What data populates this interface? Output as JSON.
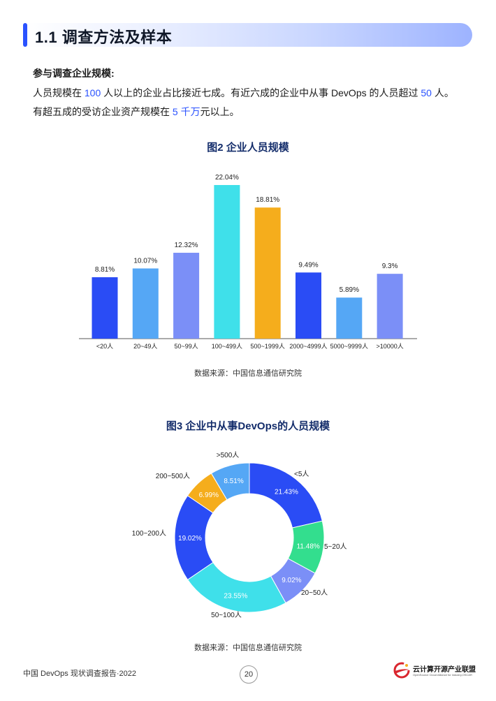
{
  "header": {
    "section_title": "1.1 调查方法及样本"
  },
  "intro": {
    "heading": "参与调查企业规模:",
    "line1_a": "人员规模在 ",
    "line1_b": "100",
    "line1_c": " 人以上的企业占比接近七成。有近六成的企业中从事 DevOps 的人员超过 ",
    "line1_d": "50",
    "line1_e": " 人。",
    "line2_a": "有超五成的受访企业资产规模在 ",
    "line2_b": "5 千万",
    "line2_c": "元以上。"
  },
  "figures": {
    "fig2_title": "图2 企业人员规模",
    "fig2_source": "数据来源：中国信息通信研究院",
    "fig3_title": "图3 企业中从事DevOps的人员规模",
    "fig3_source": "数据来源：中国信息通信研究院"
  },
  "chart_data": [
    {
      "type": "bar",
      "title": "图2 企业人员规模",
      "categories": [
        "<20人",
        "20~49人",
        "50~99人",
        "100~499人",
        "500~1999人",
        "2000~4999人",
        "5000~9999人",
        ">10000人"
      ],
      "values": [
        8.81,
        10.07,
        12.32,
        22.04,
        18.81,
        9.49,
        5.89,
        9.3
      ],
      "value_labels": [
        "8.81%",
        "10.07%",
        "12.32%",
        "22.04%",
        "18.81%",
        "9.49%",
        "5.89%",
        "9.3%"
      ],
      "colors": [
        "#2a4cf5",
        "#55a7f5",
        "#7b8ff7",
        "#3fe0ea",
        "#f5ad1c",
        "#2a4cf5",
        "#55a7f5",
        "#7b8ff7"
      ],
      "ylim": [
        0,
        22.04
      ],
      "grid": false
    },
    {
      "type": "pie",
      "title": "图3 企业中从事DevOps的人员规模",
      "labels": [
        "<5人",
        "5~20人",
        "20~50人",
        "50~100人",
        "100~200人",
        "200~500人",
        ">500人"
      ],
      "values": [
        21.43,
        11.48,
        9.02,
        23.55,
        19.02,
        6.99,
        8.51
      ],
      "value_labels": [
        "21.43%",
        "11.48%",
        "9.02%",
        "23.55%",
        "19.02%",
        "6.99%",
        "8.51%"
      ],
      "colors": [
        "#2a4cf5",
        "#33de8e",
        "#7b8ff7",
        "#3fe0ea",
        "#2a4cf5",
        "#f5ad1c",
        "#55a7f5"
      ],
      "donut": true
    }
  ],
  "footer": {
    "report_name": "中国 DevOps 现状调查报告·2022",
    "page_number": "20",
    "org_name_cn": "云计算开源产业联盟",
    "org_name_en": "OpenSource Cloud Alliance for industry,OSCAR",
    "logo_colors": [
      "#d9262e",
      "#f5ad1c"
    ]
  }
}
